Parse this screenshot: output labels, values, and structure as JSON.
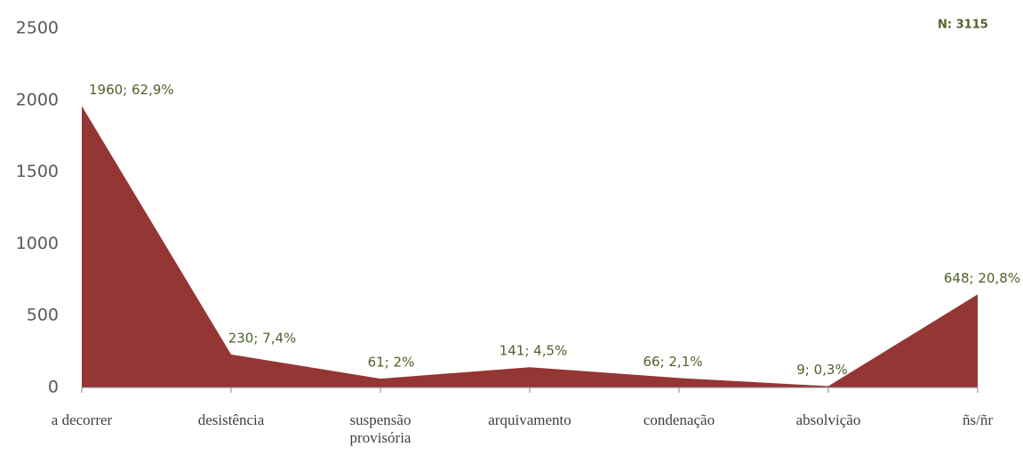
{
  "chart_data": {
    "type": "area",
    "annotation": "N:  3115",
    "categories": [
      "a decorrer",
      "desistência",
      "suspensão provisória",
      "arquivamento",
      "condenação",
      "absolvição",
      "ñs/ñr"
    ],
    "values": [
      1960,
      230,
      61,
      141,
      66,
      9,
      648
    ],
    "value_labels": [
      "1960; 62,9%",
      "230; 7,4%",
      "61; 2%",
      "141; 4,5%",
      "66; 2,1%",
      "9; 0,3%",
      "648; 20,8%"
    ],
    "color": "#943634",
    "ylim": [
      0,
      2500
    ],
    "yticks": [
      0,
      500,
      1000,
      1500,
      2000,
      2500
    ],
    "grid": false
  }
}
